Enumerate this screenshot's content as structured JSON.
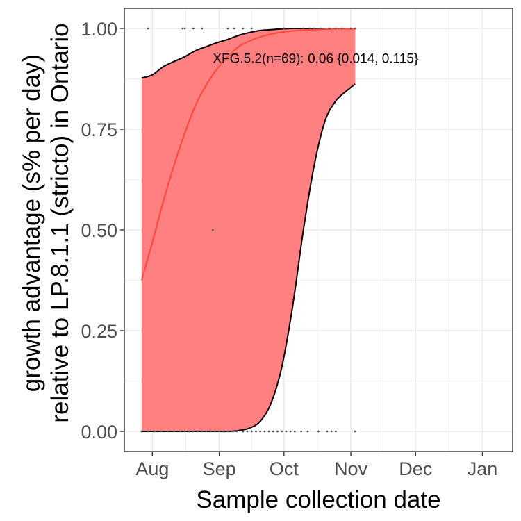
{
  "chart_data": {
    "type": "line",
    "xlabel": "Sample collection date",
    "ylabel_lines": [
      "growth advantage (s% per day)",
      "relative to LP.8.1.1 (stricto) in Ontario"
    ],
    "x_ticks": [
      "Aug",
      "Sep",
      "Oct",
      "Nov",
      "Dec",
      "Jan"
    ],
    "x_tick_dates": [
      "2025-08-01",
      "2025-09-01",
      "2025-10-01",
      "2025-11-01",
      "2025-12-01",
      "2026-01-01"
    ],
    "xlim": [
      "2025-07-19",
      "2026-01-15"
    ],
    "y_ticks": [
      "0.00",
      "0.25",
      "0.50",
      "0.75",
      "1.00"
    ],
    "ylim": [
      -0.05,
      1.05
    ],
    "grid": true,
    "colors": {
      "fit_line": "#ff4a3d",
      "ribbon_fill": "#ff8080",
      "ribbon_edge": "#000000",
      "points": "#4d4d4d",
      "panel_border": "#333333",
      "grid": "#ebebeb"
    },
    "annotation": {
      "text": "XFG.5.2(n=69): 0.06 {0.014, 0.115}",
      "x": "2025-08-29",
      "y": 0.915
    },
    "fit_x": [
      "2025-07-27",
      "2025-08-01",
      "2025-08-06",
      "2025-08-11",
      "2025-08-16",
      "2025-08-21",
      "2025-08-26",
      "2025-08-31",
      "2025-09-05",
      "2025-09-10",
      "2025-09-15",
      "2025-09-20",
      "2025-09-25",
      "2025-09-30",
      "2025-10-05",
      "2025-10-10",
      "2025-10-15",
      "2025-10-20",
      "2025-10-25",
      "2025-10-30",
      "2025-11-03"
    ],
    "fit_y": [
      0.375,
      0.47,
      0.57,
      0.66,
      0.74,
      0.81,
      0.86,
      0.9,
      0.93,
      0.955,
      0.969,
      0.979,
      0.986,
      0.991,
      0.994,
      0.996,
      0.997,
      0.998,
      0.999,
      0.999,
      0.999
    ],
    "ribbon_x": [
      "2025-07-27",
      "2025-08-01",
      "2025-08-06",
      "2025-08-11",
      "2025-08-16",
      "2025-08-21",
      "2025-08-26",
      "2025-08-31",
      "2025-09-05",
      "2025-09-10",
      "2025-09-15",
      "2025-09-20",
      "2025-09-25",
      "2025-09-30",
      "2025-10-05",
      "2025-10-10",
      "2025-10-15",
      "2025-10-20",
      "2025-10-25",
      "2025-10-30",
      "2025-11-03"
    ],
    "ribbon_upper": [
      0.877,
      0.885,
      0.905,
      0.918,
      0.93,
      0.945,
      0.955,
      0.965,
      0.973,
      0.983,
      0.99,
      0.995,
      0.997,
      0.999,
      1.0,
      1.0,
      1.0,
      1.0,
      1.0,
      1.0,
      1.0
    ],
    "ribbon_lower": [
      0.0,
      0.0,
      0.0,
      0.0,
      0.0,
      0.0,
      0.0,
      0.0,
      0.0,
      0.002,
      0.008,
      0.025,
      0.07,
      0.16,
      0.31,
      0.5,
      0.66,
      0.77,
      0.82,
      0.845,
      0.862
    ],
    "points": [
      {
        "x": "2025-07-27",
        "y": 0.0
      },
      {
        "x": "2025-07-30",
        "y": 0.0
      },
      {
        "x": "2025-08-02",
        "y": 0.0
      },
      {
        "x": "2025-08-05",
        "y": 0.0
      },
      {
        "x": "2025-08-08",
        "y": 0.0
      },
      {
        "x": "2025-08-11",
        "y": 0.0
      },
      {
        "x": "2025-08-14",
        "y": 0.0
      },
      {
        "x": "2025-08-16",
        "y": 0.0
      },
      {
        "x": "2025-08-18",
        "y": 0.0
      },
      {
        "x": "2025-08-20",
        "y": 0.0
      },
      {
        "x": "2025-08-22",
        "y": 0.0
      },
      {
        "x": "2025-08-24",
        "y": 0.0
      },
      {
        "x": "2025-08-26",
        "y": 0.0
      },
      {
        "x": "2025-08-28",
        "y": 0.0
      },
      {
        "x": "2025-08-30",
        "y": 0.0
      },
      {
        "x": "2025-09-01",
        "y": 0.0
      },
      {
        "x": "2025-09-03",
        "y": 0.0
      },
      {
        "x": "2025-09-05",
        "y": 0.0
      },
      {
        "x": "2025-09-07",
        "y": 0.0
      },
      {
        "x": "2025-09-09",
        "y": 0.0
      },
      {
        "x": "2025-09-12",
        "y": 0.0
      },
      {
        "x": "2025-09-14",
        "y": 0.0
      },
      {
        "x": "2025-09-16",
        "y": 0.0
      },
      {
        "x": "2025-09-18",
        "y": 0.0
      },
      {
        "x": "2025-09-20",
        "y": 0.0
      },
      {
        "x": "2025-09-22",
        "y": 0.0
      },
      {
        "x": "2025-09-24",
        "y": 0.0
      },
      {
        "x": "2025-09-26",
        "y": 0.0
      },
      {
        "x": "2025-09-28",
        "y": 0.0
      },
      {
        "x": "2025-09-30",
        "y": 0.0
      },
      {
        "x": "2025-10-02",
        "y": 0.0
      },
      {
        "x": "2025-10-04",
        "y": 0.0
      },
      {
        "x": "2025-10-06",
        "y": 0.0
      },
      {
        "x": "2025-10-09",
        "y": 0.0
      },
      {
        "x": "2025-10-12",
        "y": 0.0
      },
      {
        "x": "2025-10-17",
        "y": 0.0
      },
      {
        "x": "2025-10-21",
        "y": 0.0
      },
      {
        "x": "2025-10-23",
        "y": 0.0
      },
      {
        "x": "2025-10-25",
        "y": 0.0
      },
      {
        "x": "2025-11-03",
        "y": 0.0
      },
      {
        "x": "2025-08-29",
        "y": 0.5
      },
      {
        "x": "2025-07-30",
        "y": 1.0
      },
      {
        "x": "2025-08-15",
        "y": 1.0
      },
      {
        "x": "2025-08-16",
        "y": 1.0
      },
      {
        "x": "2025-08-20",
        "y": 1.0
      },
      {
        "x": "2025-08-24",
        "y": 1.0
      },
      {
        "x": "2025-09-05",
        "y": 1.0
      },
      {
        "x": "2025-09-08",
        "y": 1.0
      },
      {
        "x": "2025-09-12",
        "y": 1.0
      },
      {
        "x": "2025-09-16",
        "y": 1.0
      },
      {
        "x": "2025-10-01",
        "y": 1.0
      },
      {
        "x": "2025-10-10",
        "y": 1.0
      },
      {
        "x": "2025-10-13",
        "y": 1.0
      },
      {
        "x": "2025-10-15",
        "y": 1.0
      },
      {
        "x": "2025-10-18",
        "y": 1.0
      },
      {
        "x": "2025-10-22",
        "y": 1.0
      },
      {
        "x": "2025-10-25",
        "y": 1.0
      },
      {
        "x": "2025-10-28",
        "y": 1.0
      },
      {
        "x": "2025-11-01",
        "y": 1.0
      },
      {
        "x": "2025-11-03",
        "y": 1.0
      }
    ]
  }
}
